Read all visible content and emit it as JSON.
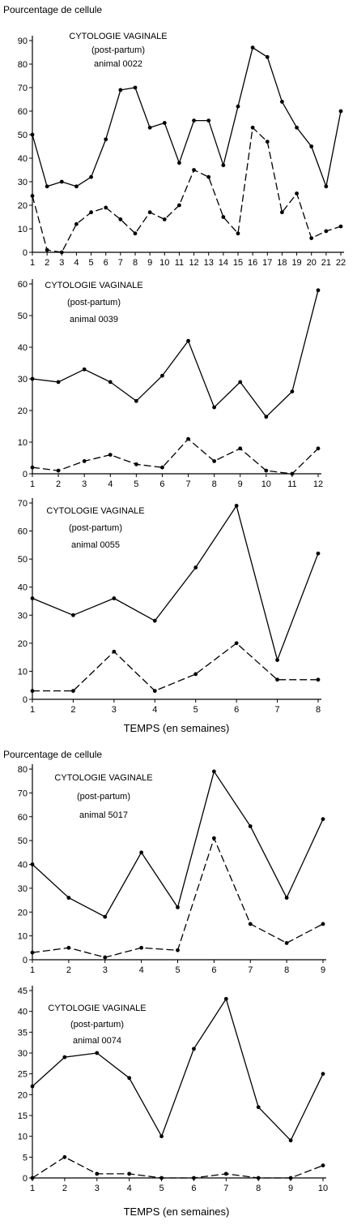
{
  "chart_data": [
    {
      "type": "line",
      "ylabel": "Pourcentage de cellule",
      "annotation": [
        "CYTOLOGIE VAGINALE",
        "(post-partum)",
        "animal 0022"
      ],
      "xlabel": "",
      "x": [
        1,
        2,
        3,
        4,
        5,
        6,
        7,
        8,
        9,
        10,
        11,
        12,
        13,
        14,
        15,
        16,
        17,
        18,
        19,
        20,
        21,
        22
      ],
      "ylim": [
        0,
        90
      ],
      "yticks": [
        0,
        10,
        20,
        30,
        40,
        50,
        60,
        70,
        80,
        90
      ],
      "series": [
        {
          "style": "solid",
          "values": [
            50,
            28,
            30,
            28,
            32,
            48,
            69,
            70,
            53,
            55,
            38,
            56,
            56,
            37,
            62,
            87,
            83,
            64,
            53,
            45,
            28,
            60
          ]
        },
        {
          "style": "dashed",
          "values": [
            24,
            1,
            0,
            12,
            17,
            19,
            14,
            8,
            17,
            14,
            20,
            35,
            32,
            15,
            8,
            53,
            47,
            17,
            25,
            6,
            9,
            11
          ]
        }
      ]
    },
    {
      "type": "line",
      "ylabel": "",
      "annotation": [
        "CYTOLOGIE VAGINALE",
        "(post-partum)",
        "animal 0039"
      ],
      "xlabel": "",
      "x": [
        1,
        2,
        3,
        4,
        5,
        6,
        7,
        8,
        9,
        10,
        11,
        12
      ],
      "ylim": [
        0,
        60
      ],
      "yticks": [
        0,
        10,
        20,
        30,
        40,
        50,
        60
      ],
      "series": [
        {
          "style": "solid",
          "values": [
            30,
            29,
            33,
            29,
            23,
            31,
            42,
            21,
            29,
            18,
            26,
            58
          ]
        },
        {
          "style": "dashed",
          "values": [
            2,
            1,
            4,
            6,
            3,
            2,
            11,
            4,
            8,
            1,
            0,
            8
          ]
        }
      ]
    },
    {
      "type": "line",
      "ylabel": "",
      "annotation": [
        "CYTOLOGIE VAGINALE",
        "(post-partum)",
        "animal 0055"
      ],
      "xlabel": "TEMPS (en semaines)",
      "x": [
        1,
        2,
        3,
        4,
        5,
        6,
        7,
        8
      ],
      "ylim": [
        0,
        70
      ],
      "yticks": [
        0,
        10,
        20,
        30,
        40,
        50,
        60,
        70
      ],
      "series": [
        {
          "style": "solid",
          "values": [
            36,
            30,
            36,
            28,
            47,
            69,
            14,
            52
          ]
        },
        {
          "style": "dashed",
          "values": [
            3,
            3,
            17,
            3,
            9,
            20,
            7,
            7
          ]
        }
      ]
    },
    {
      "type": "line",
      "ylabel": "Pourcentage de cellule",
      "annotation": [
        "CYTOLOGIE VAGINALE",
        "(post-partum)",
        "animal 5017"
      ],
      "xlabel": "",
      "x": [
        1,
        2,
        3,
        4,
        5,
        6,
        7,
        8,
        9
      ],
      "ylim": [
        0,
        80
      ],
      "yticks": [
        0,
        10,
        20,
        30,
        40,
        50,
        60,
        70,
        80
      ],
      "series": [
        {
          "style": "solid",
          "values": [
            40,
            26,
            18,
            45,
            22,
            79,
            56,
            26,
            59
          ]
        },
        {
          "style": "dashed",
          "values": [
            3,
            5,
            1,
            5,
            4,
            51,
            15,
            7,
            15
          ]
        }
      ]
    },
    {
      "type": "line",
      "ylabel": "",
      "annotation": [
        "CYTOLOGIE VAGINALE",
        "(post-partum)",
        "animal 0074"
      ],
      "xlabel": "TEMPS (en semaines)",
      "x": [
        1,
        2,
        3,
        4,
        5,
        6,
        7,
        8,
        9,
        10
      ],
      "ylim": [
        0,
        45
      ],
      "yticks": [
        0,
        5,
        10,
        15,
        20,
        25,
        30,
        35,
        40,
        45
      ],
      "series": [
        {
          "style": "solid",
          "values": [
            22,
            29,
            30,
            24,
            10,
            31,
            43,
            17,
            9,
            25
          ]
        },
        {
          "style": "dashed",
          "values": [
            0,
            5,
            1,
            1,
            0,
            0,
            1,
            0,
            0,
            3
          ]
        }
      ]
    }
  ]
}
